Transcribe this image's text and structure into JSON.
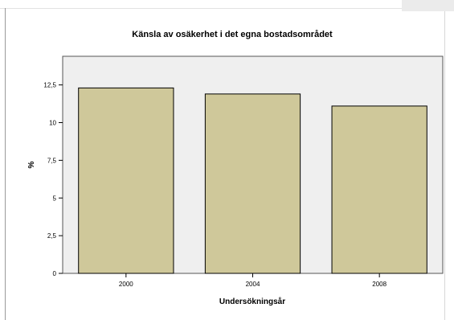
{
  "chart_data": {
    "type": "bar",
    "title": "Känsla av osäkerhet i det egna bostadsområdet",
    "xlabel": "Undersökningsår",
    "ylabel": "%",
    "categories": [
      "2000",
      "2004",
      "2008"
    ],
    "values": [
      12.3,
      11.9,
      11.1
    ],
    "yticks": [
      0,
      2.5,
      5,
      7.5,
      10,
      12.5
    ],
    "ytick_labels": [
      "0",
      "2,5",
      "5",
      "7,5",
      "10",
      "12,5"
    ],
    "ylim": [
      0,
      14.4
    ],
    "grid": false,
    "legend": "none",
    "colors": {
      "bar": "#cfc89a",
      "bar_outline": "#000000",
      "plot_background": "#efefef",
      "text": "#000000"
    }
  }
}
